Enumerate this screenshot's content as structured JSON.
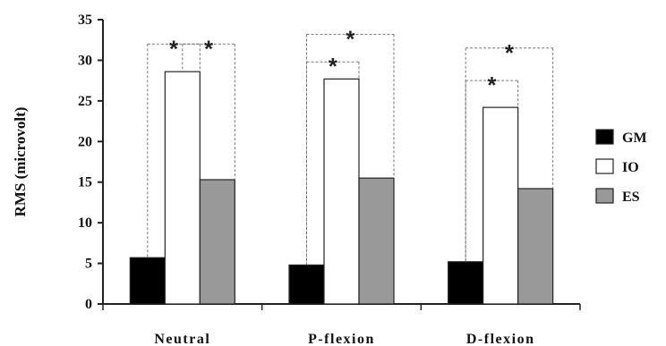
{
  "chart_data": {
    "type": "bar",
    "title": "",
    "xlabel": "",
    "ylabel": "RMS (microvolt)",
    "ylim": [
      0,
      35
    ],
    "yticks": [
      "0",
      "5",
      "10",
      "15",
      "20",
      "25",
      "30",
      "35"
    ],
    "categories": [
      "Neutral",
      "P-flexion",
      "D-flexion"
    ],
    "series": [
      {
        "name": "GM",
        "color": "#000000",
        "values": [
          5.7,
          4.8,
          5.2
        ]
      },
      {
        "name": "IO",
        "color": "#ffffff",
        "values": [
          28.6,
          27.7,
          24.2
        ]
      },
      {
        "name": "ES",
        "color": "#999999",
        "values": [
          15.3,
          15.5,
          14.2
        ]
      }
    ],
    "legend_position": "right",
    "grid": false,
    "significance": [
      {
        "category": 0,
        "from_series": 0,
        "to_series": 1,
        "level": 32.0,
        "label": "*"
      },
      {
        "category": 0,
        "from_series": 1,
        "to_series": 2,
        "level": 32.0,
        "label": "*"
      },
      {
        "category": 1,
        "from_series": 0,
        "to_series": 1,
        "level": 29.8,
        "label": "*"
      },
      {
        "category": 1,
        "from_series": 0,
        "to_series": 2,
        "level": 33.2,
        "label": "*"
      },
      {
        "category": 2,
        "from_series": 0,
        "to_series": 1,
        "level": 27.5,
        "label": "*"
      },
      {
        "category": 2,
        "from_series": 0,
        "to_series": 2,
        "level": 31.5,
        "label": "*"
      }
    ]
  }
}
